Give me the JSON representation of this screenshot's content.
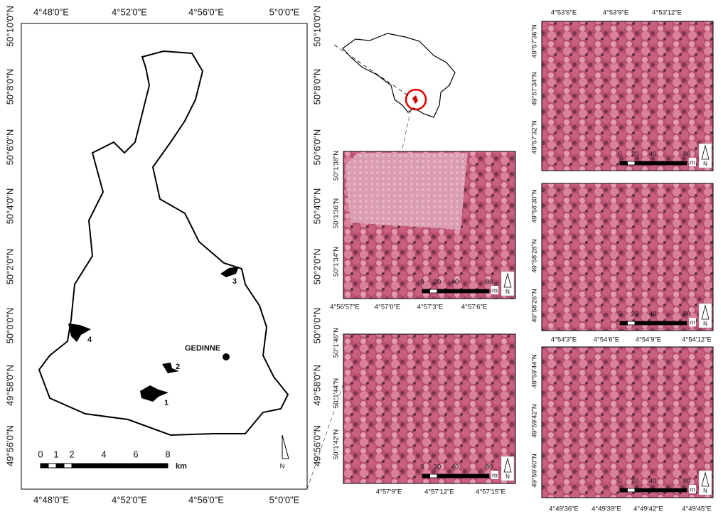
{
  "main_map": {
    "lon_labels": [
      "4°48'0\"E",
      "4°52'0\"E",
      "4°56'0\"E",
      "5°0'0\"E"
    ],
    "lat_labels": [
      "50°10'0\"N",
      "50°8'0\"N",
      "50°6'0\"N",
      "50°4'0\"N",
      "50°2'0\"N",
      "50°0'0\"N",
      "49°58'0\"N",
      "49°56'0\"N"
    ],
    "sites": [
      "1",
      "2",
      "3",
      "4"
    ],
    "town": "GEDINNE",
    "scale_bar": {
      "ticks": [
        "0",
        "1",
        "2",
        "4",
        "6",
        "8"
      ],
      "unit": "km"
    },
    "north": "N"
  },
  "panels": [
    {
      "lon_labels": [
        "4°56'57\"E",
        "4°57'0\"E",
        "4°57'3\"E",
        "4°57'6\"E"
      ],
      "lat_labels": [
        "50°1'38\"N",
        "50°1'36\"N",
        "50°1'34\"N"
      ],
      "scale_bar": {
        "ticks": [
          "0",
          "20",
          "40",
          "80"
        ],
        "unit": "m"
      },
      "north": "N"
    },
    {
      "lon_labels": [
        "4°57'9\"E",
        "4°57'12\"E",
        "4°57'15\"E"
      ],
      "lat_labels": [
        "50°1'46\"N",
        "50°1'44\"N",
        "50°1'42\"N"
      ],
      "scale_bar": {
        "ticks": [
          "0",
          "20",
          "40",
          "80"
        ],
        "unit": "m"
      },
      "north": "N"
    },
    {
      "lon_labels": [
        "4°53'6\"E",
        "4°53'9\"E",
        "4°53'12\"E"
      ],
      "lat_labels": [
        "49°57'36\"N",
        "49°57'34\"N",
        "49°57'32\"N"
      ],
      "scale_bar": {
        "ticks": [
          "0",
          "20",
          "40",
          "80"
        ],
        "unit": "m"
      },
      "north": "N"
    },
    {
      "lon_labels": [
        "4°54'3\"E",
        "4°54'6\"E",
        "4°54'9\"E",
        "4°54'12\"E"
      ],
      "lat_labels": [
        "49°58'30\"N",
        "49°58'28\"N",
        "49°58'26\"N"
      ],
      "scale_bar": {
        "ticks": [
          "0",
          "20",
          "40",
          "80"
        ],
        "unit": "m"
      },
      "north": "N"
    },
    {
      "lon_labels": [
        "4°49'36\"E",
        "4°49'39\"E",
        "4°49'42\"E",
        "4°49'45\"E"
      ],
      "lat_labels": [
        "49°59'44\"N",
        "49°59'42\"N",
        "49°59'40\"N"
      ],
      "scale_bar": {
        "ticks": [
          "0",
          "20",
          "40",
          "80"
        ],
        "unit": "m"
      },
      "north": "N"
    }
  ]
}
